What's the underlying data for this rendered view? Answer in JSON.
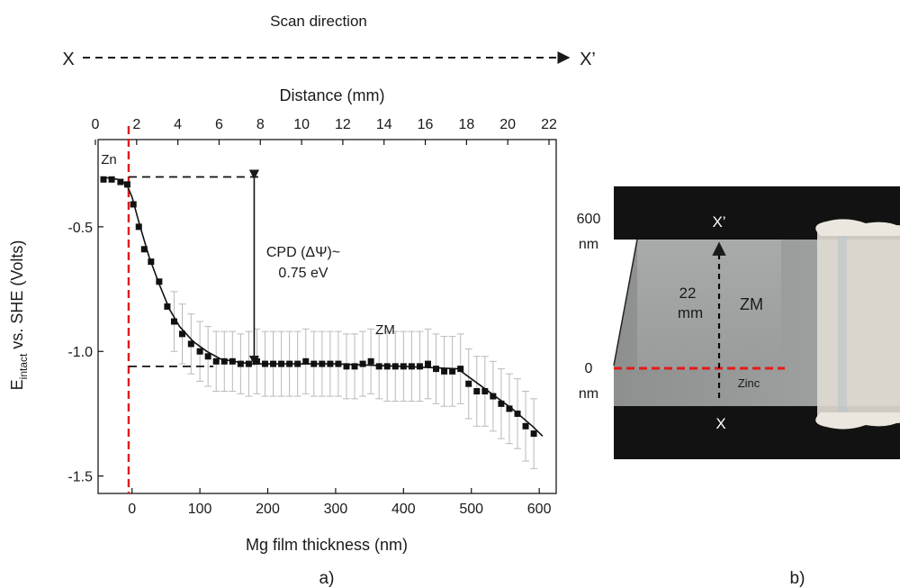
{
  "header": {
    "scan_label": "Scan direction",
    "left_end": "X",
    "right_end": "X’"
  },
  "panel_labels": {
    "a": "a)",
    "b": "b)"
  },
  "chart_data": {
    "type": "scatter",
    "xlabel": "Mg film thickness (nm)",
    "x2label": "Distance (mm)",
    "ylabel_main": "E",
    "ylabel_sub": "intact",
    "ylabel_rest": " vs. SHE (Volts)",
    "xlim": [
      -50,
      625
    ],
    "x2lim": [
      0,
      22
    ],
    "ylim": [
      -1.57,
      -0.15
    ],
    "xticks": [
      0,
      100,
      200,
      300,
      400,
      500,
      600
    ],
    "x2ticks": [
      0,
      2,
      4,
      6,
      8,
      10,
      12,
      14,
      16,
      18,
      20,
      22
    ],
    "yticks": [
      -1.5,
      -1.0,
      -0.5
    ],
    "ytick_labels": [
      "-1.5",
      "-1.0",
      "-0.5"
    ],
    "series": [
      {
        "x": [
          -42,
          -30,
          -17,
          -7,
          2,
          10,
          18,
          28,
          40,
          52,
          62,
          74,
          87,
          100,
          112,
          124,
          136,
          148,
          160,
          172,
          184,
          196,
          208,
          220,
          232,
          244,
          256,
          268,
          280,
          292,
          304,
          316,
          328,
          340,
          352,
          364,
          376,
          388,
          400,
          412,
          424,
          436,
          448,
          460,
          472,
          484,
          496,
          508,
          520,
          532,
          544,
          556,
          568,
          580,
          592
        ],
        "y": [
          -0.31,
          -0.31,
          -0.32,
          -0.33,
          -0.41,
          -0.5,
          -0.59,
          -0.64,
          -0.72,
          -0.82,
          -0.88,
          -0.93,
          -0.97,
          -1.0,
          -1.02,
          -1.04,
          -1.04,
          -1.04,
          -1.05,
          -1.05,
          -1.04,
          -1.05,
          -1.05,
          -1.05,
          -1.05,
          -1.05,
          -1.04,
          -1.05,
          -1.05,
          -1.05,
          -1.05,
          -1.06,
          -1.06,
          -1.05,
          -1.04,
          -1.06,
          -1.06,
          -1.06,
          -1.06,
          -1.06,
          -1.06,
          -1.05,
          -1.07,
          -1.08,
          -1.08,
          -1.07,
          -1.13,
          -1.16,
          -1.16,
          -1.18,
          -1.21,
          -1.23,
          -1.25,
          -1.3,
          -1.33
        ],
        "error": [
          0,
          0,
          0,
          0,
          0,
          0,
          0,
          0,
          0,
          0,
          0.12,
          0.12,
          0.12,
          0.12,
          0.12,
          0.12,
          0.12,
          0.12,
          0.12,
          0.13,
          0.13,
          0.13,
          0.13,
          0.13,
          0.13,
          0.13,
          0.13,
          0.13,
          0.13,
          0.13,
          0.13,
          0.13,
          0.13,
          0.13,
          0.13,
          0.13,
          0.14,
          0.14,
          0.14,
          0.14,
          0.14,
          0.14,
          0.14,
          0.14,
          0.14,
          0.14,
          0.14,
          0.14,
          0.14,
          0.14,
          0.14,
          0.14,
          0.14,
          0.14,
          0.14
        ]
      }
    ],
    "fit": {
      "x": [
        -45,
        -20,
        -8,
        0,
        10,
        25,
        40,
        55,
        70,
        90,
        110,
        130,
        150,
        175,
        200,
        300,
        400,
        480,
        500,
        530,
        560,
        590,
        605
      ],
      "y": [
        -0.3,
        -0.31,
        -0.33,
        -0.38,
        -0.48,
        -0.62,
        -0.73,
        -0.83,
        -0.9,
        -0.96,
        -1.0,
        -1.03,
        -1.04,
        -1.05,
        -1.05,
        -1.05,
        -1.06,
        -1.07,
        -1.11,
        -1.17,
        -1.23,
        -1.3,
        -1.34
      ]
    },
    "reference_line_x": -5,
    "cpd_top_y": -0.3,
    "cpd_bottom_y": -1.06,
    "cpd_arrow_x": 180,
    "annotations": {
      "zn": "Zn",
      "zm": "ZM",
      "cpd_line1": "CPD (ΔΨ)~",
      "cpd_line2": "0.75 eV"
    }
  },
  "photo": {
    "label_600": "600",
    "label_0": "0",
    "unit_top": "nm",
    "unit_bottom": "nm",
    "x_prime": "X’",
    "x_label": "X",
    "dist_value": "22",
    "dist_unit": "mm",
    "zm": "ZM",
    "zinc": "Zinc"
  }
}
